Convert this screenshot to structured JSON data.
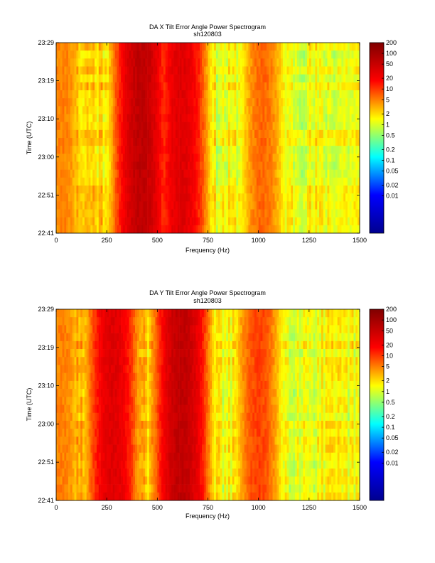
{
  "chart_data": [
    {
      "type": "heatmap",
      "title": "DA X Tilt Error Angle Power Spectrogram",
      "subtitle": "sh120803",
      "xlabel": "Frequency (Hz)",
      "ylabel": "Time (UTC)",
      "xlim": [
        0,
        1500
      ],
      "x_ticks": [
        "0",
        "250",
        "500",
        "750",
        "1000",
        "1250",
        "1500"
      ],
      "y_ticks": [
        "23:29",
        "23:19",
        "23:10",
        "23:00",
        "22:51",
        "22:41"
      ],
      "colorbar": {
        "scale": "log",
        "ticks": [
          "200",
          "100",
          "50",
          "20",
          "10",
          "5",
          "2",
          "1",
          "0.5",
          "0.2",
          "0.1",
          "0.05",
          "0.02",
          "0.01"
        ]
      },
      "colormap": [
        "#00008f",
        "#0000ff",
        "#00ffff",
        "#ffff00",
        "#ff0000",
        "#800000"
      ],
      "features": [
        {
          "freq_hz": 420,
          "level": 0.9
        },
        {
          "freq_hz": 620,
          "level": 0.85
        },
        {
          "freq_hz": 1020,
          "level": 0.72
        },
        {
          "freq_hz": 30,
          "level": 0.7
        }
      ]
    },
    {
      "type": "heatmap",
      "title": "DA Y Tilt Error Angle Power Spectrogram",
      "subtitle": "sh120803",
      "xlabel": "Frequency (Hz)",
      "ylabel": "Time (UTC)",
      "xlim": [
        0,
        1500
      ],
      "x_ticks": [
        "0",
        "250",
        "500",
        "750",
        "1000",
        "1250",
        "1500"
      ],
      "y_ticks": [
        "23:29",
        "23:19",
        "23:10",
        "23:00",
        "22:51",
        "22:41"
      ],
      "colorbar": {
        "scale": "log",
        "ticks": [
          "200",
          "100",
          "50",
          "20",
          "10",
          "5",
          "2",
          "1",
          "0.5",
          "0.2",
          "0.1",
          "0.05",
          "0.02",
          "0.01"
        ]
      },
      "colormap": [
        "#00008f",
        "#0000ff",
        "#00ffff",
        "#ffff00",
        "#ff0000",
        "#800000"
      ],
      "features": [
        {
          "freq_hz": 280,
          "level": 0.85
        },
        {
          "freq_hz": 620,
          "level": 0.9
        },
        {
          "freq_hz": 1000,
          "level": 0.75
        },
        {
          "freq_hz": 30,
          "level": 0.7
        }
      ]
    }
  ]
}
